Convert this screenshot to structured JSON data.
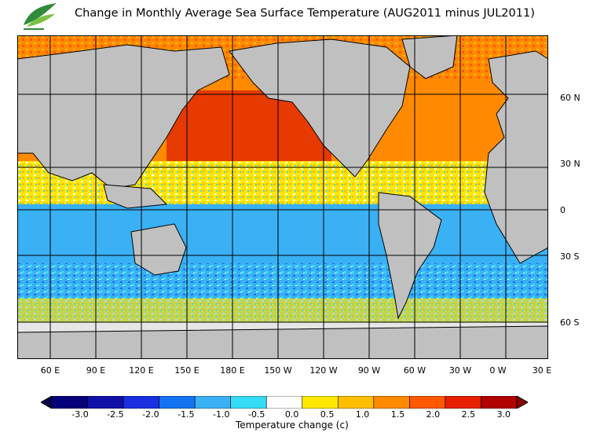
{
  "title": "Change in Monthly Average Sea Surface Temperature (AUG2011 minus JUL2011)",
  "logo": {
    "name": "leaf-logo",
    "colors": [
      "#2e8b3a",
      "#7cc242"
    ]
  },
  "map": {
    "land_color": "#c0c0c0",
    "ice_color": "#e6e6e6",
    "grid_color": "#000000",
    "lat_labels": [
      "60 N",
      "30 N",
      "0",
      "30 S",
      "60 S"
    ],
    "lon_labels": [
      "60 E",
      "90 E",
      "120 E",
      "150 E",
      "180 E",
      "150 W",
      "120 W",
      "90 W",
      "60 W",
      "30 W",
      "0 W",
      "30 E"
    ]
  },
  "colorbar": {
    "label": "Temperature change  (c)",
    "ticks": [
      "-3.0",
      "-2.5",
      "-2.0",
      "-1.5",
      "-1.0",
      "-0.5",
      "0.0",
      "0.5",
      "1.0",
      "1.5",
      "2.0",
      "2.5",
      "3.0"
    ],
    "colors": [
      "#06007a",
      "#1010a8",
      "#1a2fe0",
      "#1473f0",
      "#3ab0f5",
      "#35dcf5",
      "#ffffff",
      "#ffe800",
      "#ffbf00",
      "#ff8a00",
      "#ff5800",
      "#e62000",
      "#b00000"
    ]
  }
}
